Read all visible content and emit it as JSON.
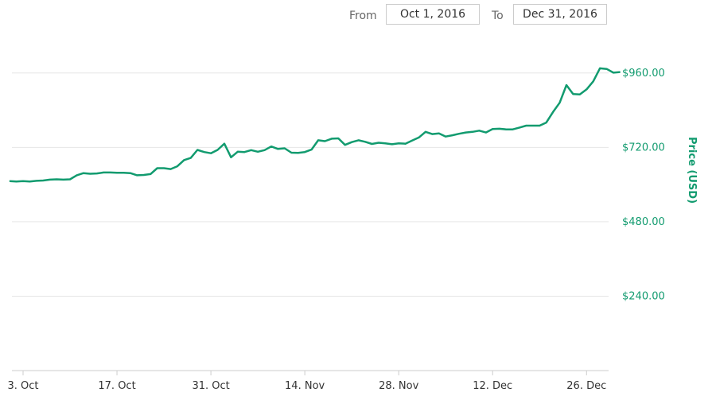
{
  "range_selector": {
    "from_label": "From",
    "from_value": "Oct 1, 2016",
    "to_label": "To",
    "to_value": "Dec 31, 2016"
  },
  "colors": {
    "series": "#129b6f",
    "grid": "#e6e6e6",
    "axis_text": "#333333"
  },
  "chart_data": {
    "type": "line",
    "title": "",
    "xlabel": "",
    "ylabel": "Price (USD)",
    "ylim": [
      0,
      1080
    ],
    "xlim": [
      "2016-10-01",
      "2016-12-31"
    ],
    "y_ticks": [
      240,
      480,
      720,
      960
    ],
    "y_tick_labels": [
      "$240.00",
      "$480.00",
      "$720.00",
      "$960.00"
    ],
    "x_ticks": [
      "2016-10-03",
      "2016-10-17",
      "2016-10-31",
      "2016-11-14",
      "2016-11-28",
      "2016-12-12",
      "2016-12-26"
    ],
    "x_tick_labels": [
      "3. Oct",
      "17. Oct",
      "31. Oct",
      "14. Nov",
      "28. Nov",
      "12. Dec",
      "26. Dec"
    ],
    "grid": true,
    "series": [
      {
        "values": [
          [
            "2016-10-01",
            611
          ],
          [
            "2016-10-02",
            610
          ],
          [
            "2016-10-03",
            611
          ],
          [
            "2016-10-04",
            610
          ],
          [
            "2016-10-05",
            612
          ],
          [
            "2016-10-06",
            613
          ],
          [
            "2016-10-07",
            616
          ],
          [
            "2016-10-08",
            617
          ],
          [
            "2016-10-09",
            616
          ],
          [
            "2016-10-10",
            617
          ],
          [
            "2016-10-11",
            630
          ],
          [
            "2016-10-12",
            637
          ],
          [
            "2016-10-13",
            635
          ],
          [
            "2016-10-14",
            636
          ],
          [
            "2016-10-15",
            639
          ],
          [
            "2016-10-16",
            639
          ],
          [
            "2016-10-17",
            638
          ],
          [
            "2016-10-18",
            638
          ],
          [
            "2016-10-19",
            637
          ],
          [
            "2016-10-20",
            630
          ],
          [
            "2016-10-21",
            631
          ],
          [
            "2016-10-22",
            634
          ],
          [
            "2016-10-23",
            653
          ],
          [
            "2016-10-24",
            653
          ],
          [
            "2016-10-25",
            650
          ],
          [
            "2016-10-26",
            659
          ],
          [
            "2016-10-27",
            679
          ],
          [
            "2016-10-28",
            686
          ],
          [
            "2016-10-29",
            712
          ],
          [
            "2016-10-30",
            705
          ],
          [
            "2016-10-31",
            701
          ],
          [
            "2016-11-01",
            712
          ],
          [
            "2016-11-02",
            732
          ],
          [
            "2016-11-03",
            688
          ],
          [
            "2016-11-04",
            706
          ],
          [
            "2016-11-05",
            705
          ],
          [
            "2016-11-06",
            711
          ],
          [
            "2016-11-07",
            706
          ],
          [
            "2016-11-08",
            711
          ],
          [
            "2016-11-09",
            723
          ],
          [
            "2016-11-10",
            715
          ],
          [
            "2016-11-11",
            717
          ],
          [
            "2016-11-12",
            703
          ],
          [
            "2016-11-13",
            702
          ],
          [
            "2016-11-14",
            705
          ],
          [
            "2016-11-15",
            713
          ],
          [
            "2016-11-16",
            743
          ],
          [
            "2016-11-17",
            740
          ],
          [
            "2016-11-18",
            748
          ],
          [
            "2016-11-19",
            749
          ],
          [
            "2016-11-20",
            728
          ],
          [
            "2016-11-21",
            737
          ],
          [
            "2016-11-22",
            743
          ],
          [
            "2016-11-23",
            738
          ],
          [
            "2016-11-24",
            731
          ],
          [
            "2016-11-25",
            735
          ],
          [
            "2016-11-26",
            733
          ],
          [
            "2016-11-27",
            730
          ],
          [
            "2016-11-28",
            733
          ],
          [
            "2016-11-29",
            732
          ],
          [
            "2016-11-30",
            742
          ],
          [
            "2016-12-01",
            752
          ],
          [
            "2016-12-02",
            770
          ],
          [
            "2016-12-03",
            763
          ],
          [
            "2016-12-04",
            765
          ],
          [
            "2016-12-05",
            755
          ],
          [
            "2016-12-06",
            759
          ],
          [
            "2016-12-07",
            764
          ],
          [
            "2016-12-08",
            768
          ],
          [
            "2016-12-09",
            770
          ],
          [
            "2016-12-10",
            774
          ],
          [
            "2016-12-11",
            768
          ],
          [
            "2016-12-12",
            779
          ],
          [
            "2016-12-13",
            780
          ],
          [
            "2016-12-14",
            778
          ],
          [
            "2016-12-15",
            778
          ],
          [
            "2016-12-16",
            784
          ],
          [
            "2016-12-17",
            790
          ],
          [
            "2016-12-18",
            790
          ],
          [
            "2016-12-19",
            790
          ],
          [
            "2016-12-20",
            800
          ],
          [
            "2016-12-21",
            834
          ],
          [
            "2016-12-22",
            864
          ],
          [
            "2016-12-23",
            921
          ],
          [
            "2016-12-24",
            892
          ],
          [
            "2016-12-25",
            891
          ],
          [
            "2016-12-26",
            907
          ],
          [
            "2016-12-27",
            933
          ],
          [
            "2016-12-28",
            975
          ],
          [
            "2016-12-29",
            973
          ],
          [
            "2016-12-30",
            961
          ],
          [
            "2016-12-31",
            963
          ]
        ]
      }
    ]
  }
}
